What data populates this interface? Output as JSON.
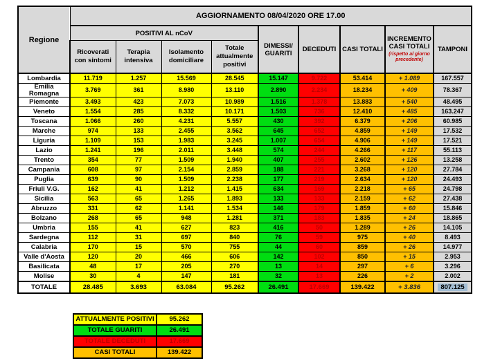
{
  "header": {
    "title": "AGGIORNAMENTO 08/04/2020 ORE 17.00"
  },
  "table": {
    "headers": {
      "regione": "Regione",
      "positivi_group": "POSITIVI AL nCoV",
      "sub": [
        "Ricoverati con sintomi",
        "Terapia intensiva",
        "Isolamento domiciliare",
        "Totale attualmente positivi"
      ],
      "dimessi_guariti": "DIMESSI/ GUARITI",
      "deceduti": "DECEDUTI",
      "casi_totali": "CASI TOTALI",
      "incremento": "INCREMENTO CASI  TOTALI",
      "incremento_note": "(rispetto al giorno precedente)",
      "tamponi": "TAMPONI"
    },
    "rows": [
      {
        "regione": "Lombardia",
        "ricoverati_con_sintomi": "11.719",
        "terapia_intensiva": "1.257",
        "isolamento_domiciliare": "15.569",
        "totale_attualmente_positivi": "28.545",
        "dimessi_guariti": "15.147",
        "deceduti": "9.722",
        "casi_totali": "53.414",
        "incremento": "+ 1.089",
        "tamponi": "167.557"
      },
      {
        "regione": "Emilia Romagna",
        "ricoverati_con_sintomi": "3.769",
        "terapia_intensiva": "361",
        "isolamento_domiciliare": "8.980",
        "totale_attualmente_positivi": "13.110",
        "dimessi_guariti": "2.890",
        "deceduti": "2.234",
        "casi_totali": "18.234",
        "incremento": "+ 409",
        "tamponi": "78.367"
      },
      {
        "regione": "Piemonte",
        "ricoverati_con_sintomi": "3.493",
        "terapia_intensiva": "423",
        "isolamento_domiciliare": "7.073",
        "totale_attualmente_positivi": "10.989",
        "dimessi_guariti": "1.516",
        "deceduti": "1.378",
        "casi_totali": "13.883",
        "incremento": "+ 540",
        "tamponi": "48.495"
      },
      {
        "regione": "Veneto",
        "ricoverati_con_sintomi": "1.554",
        "terapia_intensiva": "285",
        "isolamento_domiciliare": "8.332",
        "totale_attualmente_positivi": "10.171",
        "dimessi_guariti": "1.503",
        "deceduti": "736",
        "casi_totali": "12.410",
        "incremento": "+ 485",
        "tamponi": "163.247"
      },
      {
        "regione": "Toscana",
        "ricoverati_con_sintomi": "1.066",
        "terapia_intensiva": "260",
        "isolamento_domiciliare": "4.231",
        "totale_attualmente_positivi": "5.557",
        "dimessi_guariti": "430",
        "deceduti": "392",
        "casi_totali": "6.379",
        "incremento": "+ 206",
        "tamponi": "60.985"
      },
      {
        "regione": "Marche",
        "ricoverati_con_sintomi": "974",
        "terapia_intensiva": "133",
        "isolamento_domiciliare": "2.455",
        "totale_attualmente_positivi": "3.562",
        "dimessi_guariti": "645",
        "deceduti": "652",
        "casi_totali": "4.859",
        "incremento": "+ 149",
        "tamponi": "17.532"
      },
      {
        "regione": "Liguria",
        "ricoverati_con_sintomi": "1.109",
        "terapia_intensiva": "153",
        "isolamento_domiciliare": "1.983",
        "totale_attualmente_positivi": "3.245",
        "dimessi_guariti": "1.007",
        "deceduti": "654",
        "casi_totali": "4.906",
        "incremento": "+ 149",
        "tamponi": "17.521"
      },
      {
        "regione": "Lazio",
        "ricoverati_con_sintomi": "1.241",
        "terapia_intensiva": "196",
        "isolamento_domiciliare": "2.011",
        "totale_attualmente_positivi": "3.448",
        "dimessi_guariti": "574",
        "deceduti": "244",
        "casi_totali": "4.266",
        "incremento": "+ 117",
        "tamponi": "55.113"
      },
      {
        "regione": "Trento",
        "ricoverati_con_sintomi": "354",
        "terapia_intensiva": "77",
        "isolamento_domiciliare": "1.509",
        "totale_attualmente_positivi": "1.940",
        "dimessi_guariti": "407",
        "deceduti": "255",
        "casi_totali": "2.602",
        "incremento": "+ 126",
        "tamponi": "13.258"
      },
      {
        "regione": "Campania",
        "ricoverati_con_sintomi": "608",
        "terapia_intensiva": "97",
        "isolamento_domiciliare": "2.154",
        "totale_attualmente_positivi": "2.859",
        "dimessi_guariti": "188",
        "deceduti": "221",
        "casi_totali": "3.268",
        "incremento": "+ 120",
        "tamponi": "27.784"
      },
      {
        "regione": "Puglia",
        "ricoverati_con_sintomi": "639",
        "terapia_intensiva": "90",
        "isolamento_domiciliare": "1.509",
        "totale_attualmente_positivi": "2.238",
        "dimessi_guariti": "177",
        "deceduti": "219",
        "casi_totali": "2.634",
        "incremento": "+ 120",
        "tamponi": "24.493"
      },
      {
        "regione": "Friuli V.G.",
        "ricoverati_con_sintomi": "162",
        "terapia_intensiva": "41",
        "isolamento_domiciliare": "1.212",
        "totale_attualmente_positivi": "1.415",
        "dimessi_guariti": "634",
        "deceduti": "169",
        "casi_totali": "2.218",
        "incremento": "+ 65",
        "tamponi": "24.798"
      },
      {
        "regione": "Sicilia",
        "ricoverati_con_sintomi": "563",
        "terapia_intensiva": "65",
        "isolamento_domiciliare": "1.265",
        "totale_attualmente_positivi": "1.893",
        "dimessi_guariti": "133",
        "deceduti": "133",
        "casi_totali": "2.159",
        "incremento": "+ 62",
        "tamponi": "27.438"
      },
      {
        "regione": "Abruzzo",
        "ricoverati_con_sintomi": "331",
        "terapia_intensiva": "62",
        "isolamento_domiciliare": "1.141",
        "totale_attualmente_positivi": "1.534",
        "dimessi_guariti": "146",
        "deceduti": "179",
        "casi_totali": "1.859",
        "incremento": "+ 60",
        "tamponi": "15.846"
      },
      {
        "regione": "Bolzano",
        "ricoverati_con_sintomi": "268",
        "terapia_intensiva": "65",
        "isolamento_domiciliare": "948",
        "totale_attualmente_positivi": "1.281",
        "dimessi_guariti": "371",
        "deceduti": "183",
        "casi_totali": "1.835",
        "incremento": "+ 24",
        "tamponi": "18.865"
      },
      {
        "regione": "Umbria",
        "ricoverati_con_sintomi": "155",
        "terapia_intensiva": "41",
        "isolamento_domiciliare": "627",
        "totale_attualmente_positivi": "823",
        "dimessi_guariti": "416",
        "deceduti": "50",
        "casi_totali": "1.289",
        "incremento": "+ 26",
        "tamponi": "14.105"
      },
      {
        "regione": "Sardegna",
        "ricoverati_con_sintomi": "112",
        "terapia_intensiva": "31",
        "isolamento_domiciliare": "697",
        "totale_attualmente_positivi": "840",
        "dimessi_guariti": "76",
        "deceduti": "59",
        "casi_totali": "975",
        "incremento": "+ 40",
        "tamponi": "8.493"
      },
      {
        "regione": "Calabria",
        "ricoverati_con_sintomi": "170",
        "terapia_intensiva": "15",
        "isolamento_domiciliare": "570",
        "totale_attualmente_positivi": "755",
        "dimessi_guariti": "44",
        "deceduti": "60",
        "casi_totali": "859",
        "incremento": "+ 26",
        "tamponi": "14.977"
      },
      {
        "regione": "Valle d'Aosta",
        "ricoverati_con_sintomi": "120",
        "terapia_intensiva": "20",
        "isolamento_domiciliare": "466",
        "totale_attualmente_positivi": "606",
        "dimessi_guariti": "142",
        "deceduti": "102",
        "casi_totali": "850",
        "incremento": "+ 15",
        "tamponi": "2.953"
      },
      {
        "regione": "Basilicata",
        "ricoverati_con_sintomi": "48",
        "terapia_intensiva": "17",
        "isolamento_domiciliare": "205",
        "totale_attualmente_positivi": "270",
        "dimessi_guariti": "13",
        "deceduti": "14",
        "casi_totali": "297",
        "incremento": "+ 6",
        "tamponi": "3.296"
      },
      {
        "regione": "Molise",
        "ricoverati_con_sintomi": "30",
        "terapia_intensiva": "4",
        "isolamento_domiciliare": "147",
        "totale_attualmente_positivi": "181",
        "dimessi_guariti": "32",
        "deceduti": "13",
        "casi_totali": "226",
        "incremento": "+ 2",
        "tamponi": "2.002"
      }
    ],
    "totale": {
      "regione": "TOTALE",
      "ricoverati_con_sintomi": "28.485",
      "terapia_intensiva": "3.693",
      "isolamento_domiciliare": "63.084",
      "totale_attualmente_positivi": "95.262",
      "dimessi_guariti": "26.491",
      "deceduti": "17.669",
      "casi_totali": "139.422",
      "incremento": "+ 3.836",
      "tamponi": "807.125"
    }
  },
  "summary": {
    "rows": [
      {
        "label": "ATTUALMENTE POSITIVI",
        "value": "95.262",
        "bg": "#ffff00",
        "text": "#000000"
      },
      {
        "label": "TOTALE GUARITI",
        "value": "26.491",
        "bg": "#00dd11",
        "text": "#000000"
      },
      {
        "label": "TOTALE DECEDUTI",
        "value": "17.669",
        "bg": "#ff0000",
        "text": "#c00000"
      },
      {
        "label": "CASI TOTALI",
        "value": "139.422",
        "bg": "#ffc000",
        "text": "#000000"
      }
    ]
  },
  "colors": {
    "header_grey": "#d9d9d9",
    "positivi_yellow": "#ffff00",
    "guariti_green": "#00dd11",
    "deceduti_red": "#ff0000",
    "deceduti_text": "#c00000",
    "totali_orange": "#ffc000",
    "tamponi_grey": "#d9d9d9",
    "selection_blue": "#a3bdd3",
    "border_black": "#000000"
  }
}
